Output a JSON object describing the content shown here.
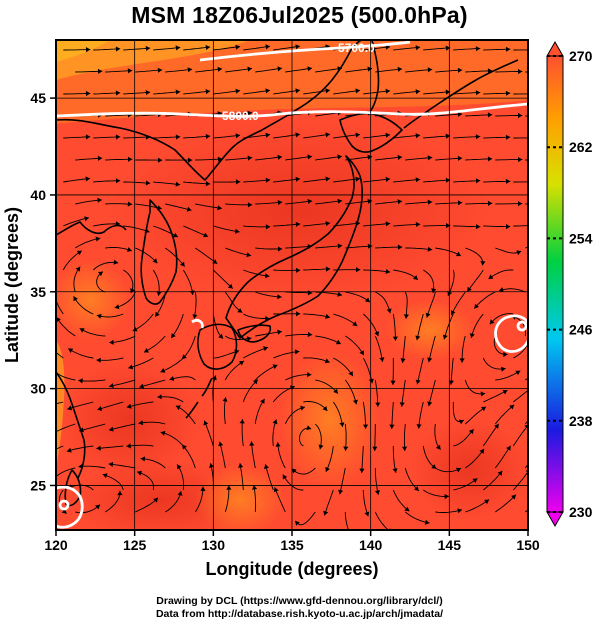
{
  "title": "MSM 18Z06Jul2025 (500.0hPa)",
  "x_axis": {
    "label": "Longitude (degrees)",
    "range": [
      120,
      150
    ],
    "ticks": [
      120,
      125,
      130,
      135,
      140,
      145,
      150
    ],
    "tick_labels": [
      "120",
      "125",
      "130",
      "135",
      "140",
      "145",
      "150"
    ]
  },
  "y_axis": {
    "label": "Latitude  (degrees)",
    "range": [
      22.7,
      48
    ],
    "ticks": [
      25,
      30,
      35,
      40,
      45
    ],
    "tick_labels": [
      "25",
      "30",
      "35",
      "40",
      "45"
    ]
  },
  "colorbar": {
    "range": [
      230,
      270
    ],
    "ticks": [
      230,
      238,
      246,
      254,
      262,
      270
    ],
    "tick_labels": [
      "230",
      "238",
      "246",
      "254",
      "262",
      "270"
    ],
    "colors": [
      "#ee00ee",
      "#1a1ae0",
      "#00c8f0",
      "#00d040",
      "#d8e000",
      "#ffa000",
      "#ff5030"
    ]
  },
  "contours": [
    {
      "label": "5700.0"
    },
    {
      "label": "5800.0"
    }
  ],
  "colors": {
    "field_main": "#ff4b30",
    "field_warm": "#f03a25",
    "field_cool": "#ff7a20",
    "coast": "#000000",
    "contour": "#ffffff"
  },
  "credits": [
    "Drawing by DCL (https://www.gfd-dennou.org/library/dcl/)",
    "Data from http://database.rish.kyoto-u.ac.jp/arch/jmadata/"
  ]
}
